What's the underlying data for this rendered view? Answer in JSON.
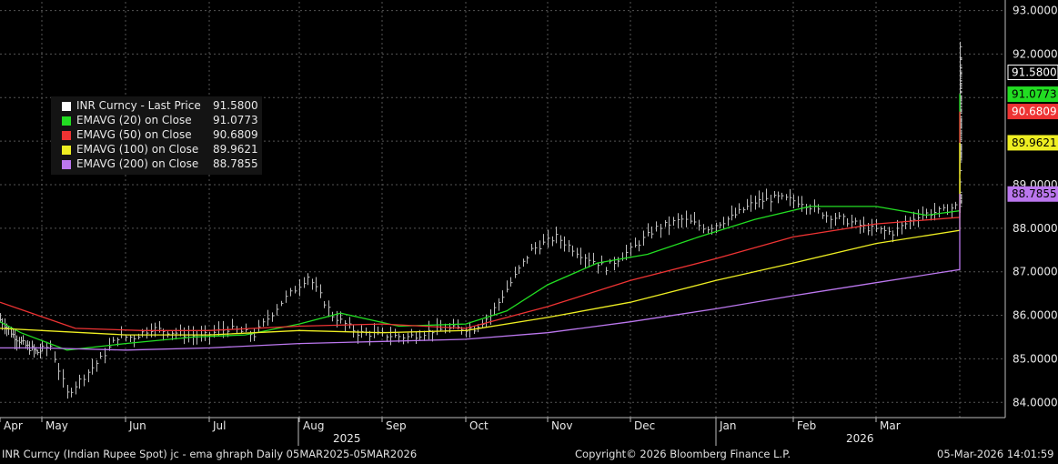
{
  "chart_data": {
    "type": "line",
    "title": "INR Curncy (Indian Rupee Spot) jc - ema ghraph Daily 05MAR2025-05MAR2026",
    "y_ticks": [
      "84.0000",
      "85.0000",
      "86.0000",
      "87.0000",
      "88.0000",
      "89.0000",
      "90.0000",
      "91.0000",
      "92.0000",
      "93.0000"
    ],
    "y_range": [
      83.65,
      93.2
    ],
    "month_labels": [
      "Apr",
      "May",
      "Jun",
      "Jul",
      "Aug",
      "Sep",
      "Oct",
      "Nov",
      "Dec",
      "Jan",
      "Feb",
      "Mar"
    ],
    "year_labels": [
      "2025",
      "2026"
    ],
    "grid": true,
    "price_series": {
      "name": "INR Curncy - Last Price",
      "last": 91.58,
      "color": "#ffffff",
      "daily_close": [
        [
          0.0,
          85.9
        ],
        [
          0.3,
          85.55
        ],
        [
          0.6,
          85.3
        ],
        [
          0.9,
          85.15
        ],
        [
          1.1,
          85.3
        ],
        [
          1.3,
          84.2
        ],
        [
          1.5,
          84.6
        ],
        [
          1.7,
          85.0
        ],
        [
          1.9,
          85.5
        ],
        [
          2.1,
          85.5
        ],
        [
          2.3,
          85.7
        ],
        [
          2.6,
          85.6
        ],
        [
          2.9,
          85.5
        ],
        [
          3.2,
          85.7
        ],
        [
          3.5,
          85.55
        ],
        [
          3.8,
          86.3
        ],
        [
          4.1,
          86.9
        ],
        [
          4.4,
          86.0
        ],
        [
          4.7,
          85.6
        ],
        [
          5.0,
          85.55
        ],
        [
          5.3,
          85.5
        ],
        [
          5.6,
          85.65
        ],
        [
          5.9,
          85.7
        ],
        [
          6.1,
          85.7
        ],
        [
          6.3,
          86.0
        ],
        [
          6.5,
          86.6
        ],
        [
          6.8,
          87.5
        ],
        [
          7.1,
          87.8
        ],
        [
          7.4,
          87.4
        ],
        [
          7.7,
          87.1
        ],
        [
          8.0,
          87.5
        ],
        [
          8.3,
          88.0
        ],
        [
          8.6,
          88.2
        ],
        [
          8.9,
          88.0
        ],
        [
          9.2,
          88.25
        ],
        [
          9.5,
          88.6
        ],
        [
          9.8,
          88.7
        ],
        [
          10.1,
          88.6
        ],
        [
          10.4,
          88.3
        ],
        [
          10.6,
          88.2
        ],
        [
          10.9,
          88.0
        ],
        [
          11.2,
          87.9
        ],
        [
          11.5,
          88.3
        ],
        [
          11.8,
          88.4
        ],
        [
          12.1,
          88.6
        ],
        [
          12.4,
          88.7
        ],
        [
          12.8,
          88.7
        ],
        [
          13.0,
          89.5
        ],
        [
          13.3,
          89.9
        ],
        [
          13.6,
          90.2
        ],
        [
          13.9,
          90.4
        ],
        [
          14.2,
          90.3
        ],
        [
          14.5,
          89.9
        ],
        [
          14.7,
          89.6
        ],
        [
          15.0,
          89.8
        ],
        [
          15.3,
          89.7
        ],
        [
          15.6,
          89.8
        ],
        [
          15.9,
          89.9
        ],
        [
          16.2,
          90.3
        ],
        [
          16.5,
          90.7
        ],
        [
          16.8,
          91.6
        ],
        [
          17.1,
          91.7
        ],
        [
          17.4,
          91.1
        ],
        [
          17.7,
          90.8
        ],
        [
          18.0,
          90.6
        ],
        [
          18.3,
          90.4
        ],
        [
          18.6,
          90.6
        ],
        [
          18.9,
          90.9
        ],
        [
          19.2,
          90.9
        ],
        [
          19.5,
          91.2
        ],
        [
          19.8,
          91.4
        ],
        [
          20.1,
          92.1
        ],
        [
          20.3,
          91.6
        ]
      ]
    },
    "emas": [
      {
        "name": "EMAVG (20)  on Close",
        "value": "91.0773",
        "color": "#22dd22",
        "points": [
          [
            0.0,
            85.85
          ],
          [
            0.5,
            85.6
          ],
          [
            1.3,
            85.2
          ],
          [
            2.0,
            85.35
          ],
          [
            2.8,
            85.5
          ],
          [
            3.4,
            85.55
          ],
          [
            4.0,
            85.8
          ],
          [
            4.5,
            86.05
          ],
          [
            5.2,
            85.75
          ],
          [
            6.0,
            85.8
          ],
          [
            6.5,
            86.1
          ],
          [
            7.0,
            86.7
          ],
          [
            7.6,
            87.2
          ],
          [
            8.2,
            87.4
          ],
          [
            8.8,
            87.8
          ],
          [
            9.5,
            88.2
          ],
          [
            10.2,
            88.5
          ],
          [
            11.0,
            88.5
          ],
          [
            11.6,
            88.3
          ],
          [
            12.3,
            88.4
          ],
          [
            13.2,
            88.7
          ],
          [
            14.0,
            89.3
          ],
          [
            14.8,
            89.8
          ],
          [
            15.5,
            89.8
          ],
          [
            16.2,
            89.95
          ],
          [
            16.9,
            90.4
          ],
          [
            17.5,
            91.0
          ],
          [
            18.0,
            90.9
          ],
          [
            18.8,
            90.8
          ],
          [
            19.4,
            90.85
          ],
          [
            20.0,
            90.95
          ],
          [
            20.3,
            91.08
          ]
        ]
      },
      {
        "name": "EMAVG (50)  on Close",
        "value": "90.6809",
        "color": "#ee3333",
        "points": [
          [
            0.0,
            86.3
          ],
          [
            0.6,
            86.1
          ],
          [
            1.4,
            85.7
          ],
          [
            2.2,
            85.65
          ],
          [
            3.0,
            85.65
          ],
          [
            4.0,
            85.75
          ],
          [
            5.0,
            85.8
          ],
          [
            6.0,
            85.7
          ],
          [
            7.0,
            86.2
          ],
          [
            8.0,
            86.8
          ],
          [
            9.0,
            87.3
          ],
          [
            10.0,
            87.8
          ],
          [
            11.0,
            88.1
          ],
          [
            12.0,
            88.25
          ],
          [
            13.0,
            88.5
          ],
          [
            14.0,
            88.9
          ],
          [
            15.0,
            89.3
          ],
          [
            16.0,
            89.6
          ],
          [
            17.0,
            90.0
          ],
          [
            17.6,
            90.4
          ],
          [
            18.5,
            90.5
          ],
          [
            19.3,
            90.55
          ],
          [
            20.3,
            90.68
          ]
        ]
      },
      {
        "name": "EMAVG (100)  on Close",
        "value": "89.9621",
        "color": "#eeee22",
        "points": [
          [
            0.0,
            85.7
          ],
          [
            1.0,
            85.65
          ],
          [
            2.0,
            85.55
          ],
          [
            3.0,
            85.55
          ],
          [
            4.0,
            85.65
          ],
          [
            5.0,
            85.6
          ],
          [
            6.0,
            85.65
          ],
          [
            7.0,
            85.95
          ],
          [
            8.0,
            86.3
          ],
          [
            9.0,
            86.8
          ],
          [
            10.0,
            87.2
          ],
          [
            11.0,
            87.65
          ],
          [
            12.0,
            87.95
          ],
          [
            13.0,
            88.25
          ],
          [
            14.0,
            88.55
          ],
          [
            15.0,
            88.85
          ],
          [
            16.0,
            89.15
          ],
          [
            17.0,
            89.45
          ],
          [
            18.0,
            89.65
          ],
          [
            19.0,
            89.8
          ],
          [
            20.3,
            89.96
          ]
        ]
      },
      {
        "name": "EMAVG (200)  on Close",
        "value": "88.7855",
        "color": "#bb77ee",
        "points": [
          [
            0.0,
            85.25
          ],
          [
            1.0,
            85.25
          ],
          [
            2.0,
            85.2
          ],
          [
            3.0,
            85.25
          ],
          [
            4.0,
            85.35
          ],
          [
            5.0,
            85.4
          ],
          [
            6.0,
            85.45
          ],
          [
            7.0,
            85.6
          ],
          [
            8.0,
            85.85
          ],
          [
            9.0,
            86.15
          ],
          [
            10.0,
            86.45
          ],
          [
            11.0,
            86.75
          ],
          [
            12.0,
            87.05
          ],
          [
            13.0,
            87.3
          ],
          [
            14.0,
            87.6
          ],
          [
            15.0,
            87.85
          ],
          [
            16.0,
            88.1
          ],
          [
            17.0,
            88.3
          ],
          [
            18.0,
            88.5
          ],
          [
            19.0,
            88.62
          ],
          [
            20.3,
            88.79
          ]
        ]
      }
    ]
  },
  "legend": [
    {
      "name": "INR Curncy - Last Price",
      "value": "91.5800",
      "color": "#ffffff"
    },
    {
      "name": "EMAVG (20)  on Close",
      "value": "91.0773",
      "color": "#22dd22"
    },
    {
      "name": "EMAVG (50)  on Close",
      "value": "90.6809",
      "color": "#ee3333"
    },
    {
      "name": "EMAVG (100)  on Close",
      "value": "89.9621",
      "color": "#eeee22"
    },
    {
      "name": "EMAVG (200)  on Close",
      "value": "88.7855",
      "color": "#bb77ee"
    }
  ],
  "value_tags": [
    {
      "value": "91.5800",
      "num": 91.58,
      "bg": "#000000",
      "fg": "#ffffff",
      "border": "#ffffff"
    },
    {
      "value": "91.0773",
      "num": 91.0773,
      "bg": "#22dd22",
      "fg": "#000000",
      "border": "#22dd22"
    },
    {
      "value": "90.6809",
      "num": 90.6809,
      "bg": "#ee3333",
      "fg": "#ffffff",
      "border": "#ee3333"
    },
    {
      "value": "89.9621",
      "num": 89.9621,
      "bg": "#eeee22",
      "fg": "#000000",
      "border": "#eeee22"
    },
    {
      "value": "88.7855",
      "num": 88.7855,
      "bg": "#bb77ee",
      "fg": "#000000",
      "border": "#bb77ee"
    }
  ],
  "footer": {
    "left": "INR Curncy (Indian Rupee Spot) jc - ema ghraph Daily 05MAR2025-05MAR2026",
    "center": "Copyright© 2026 Bloomberg Finance L.P.",
    "right": "05-Mar-2026 14:01:59"
  }
}
